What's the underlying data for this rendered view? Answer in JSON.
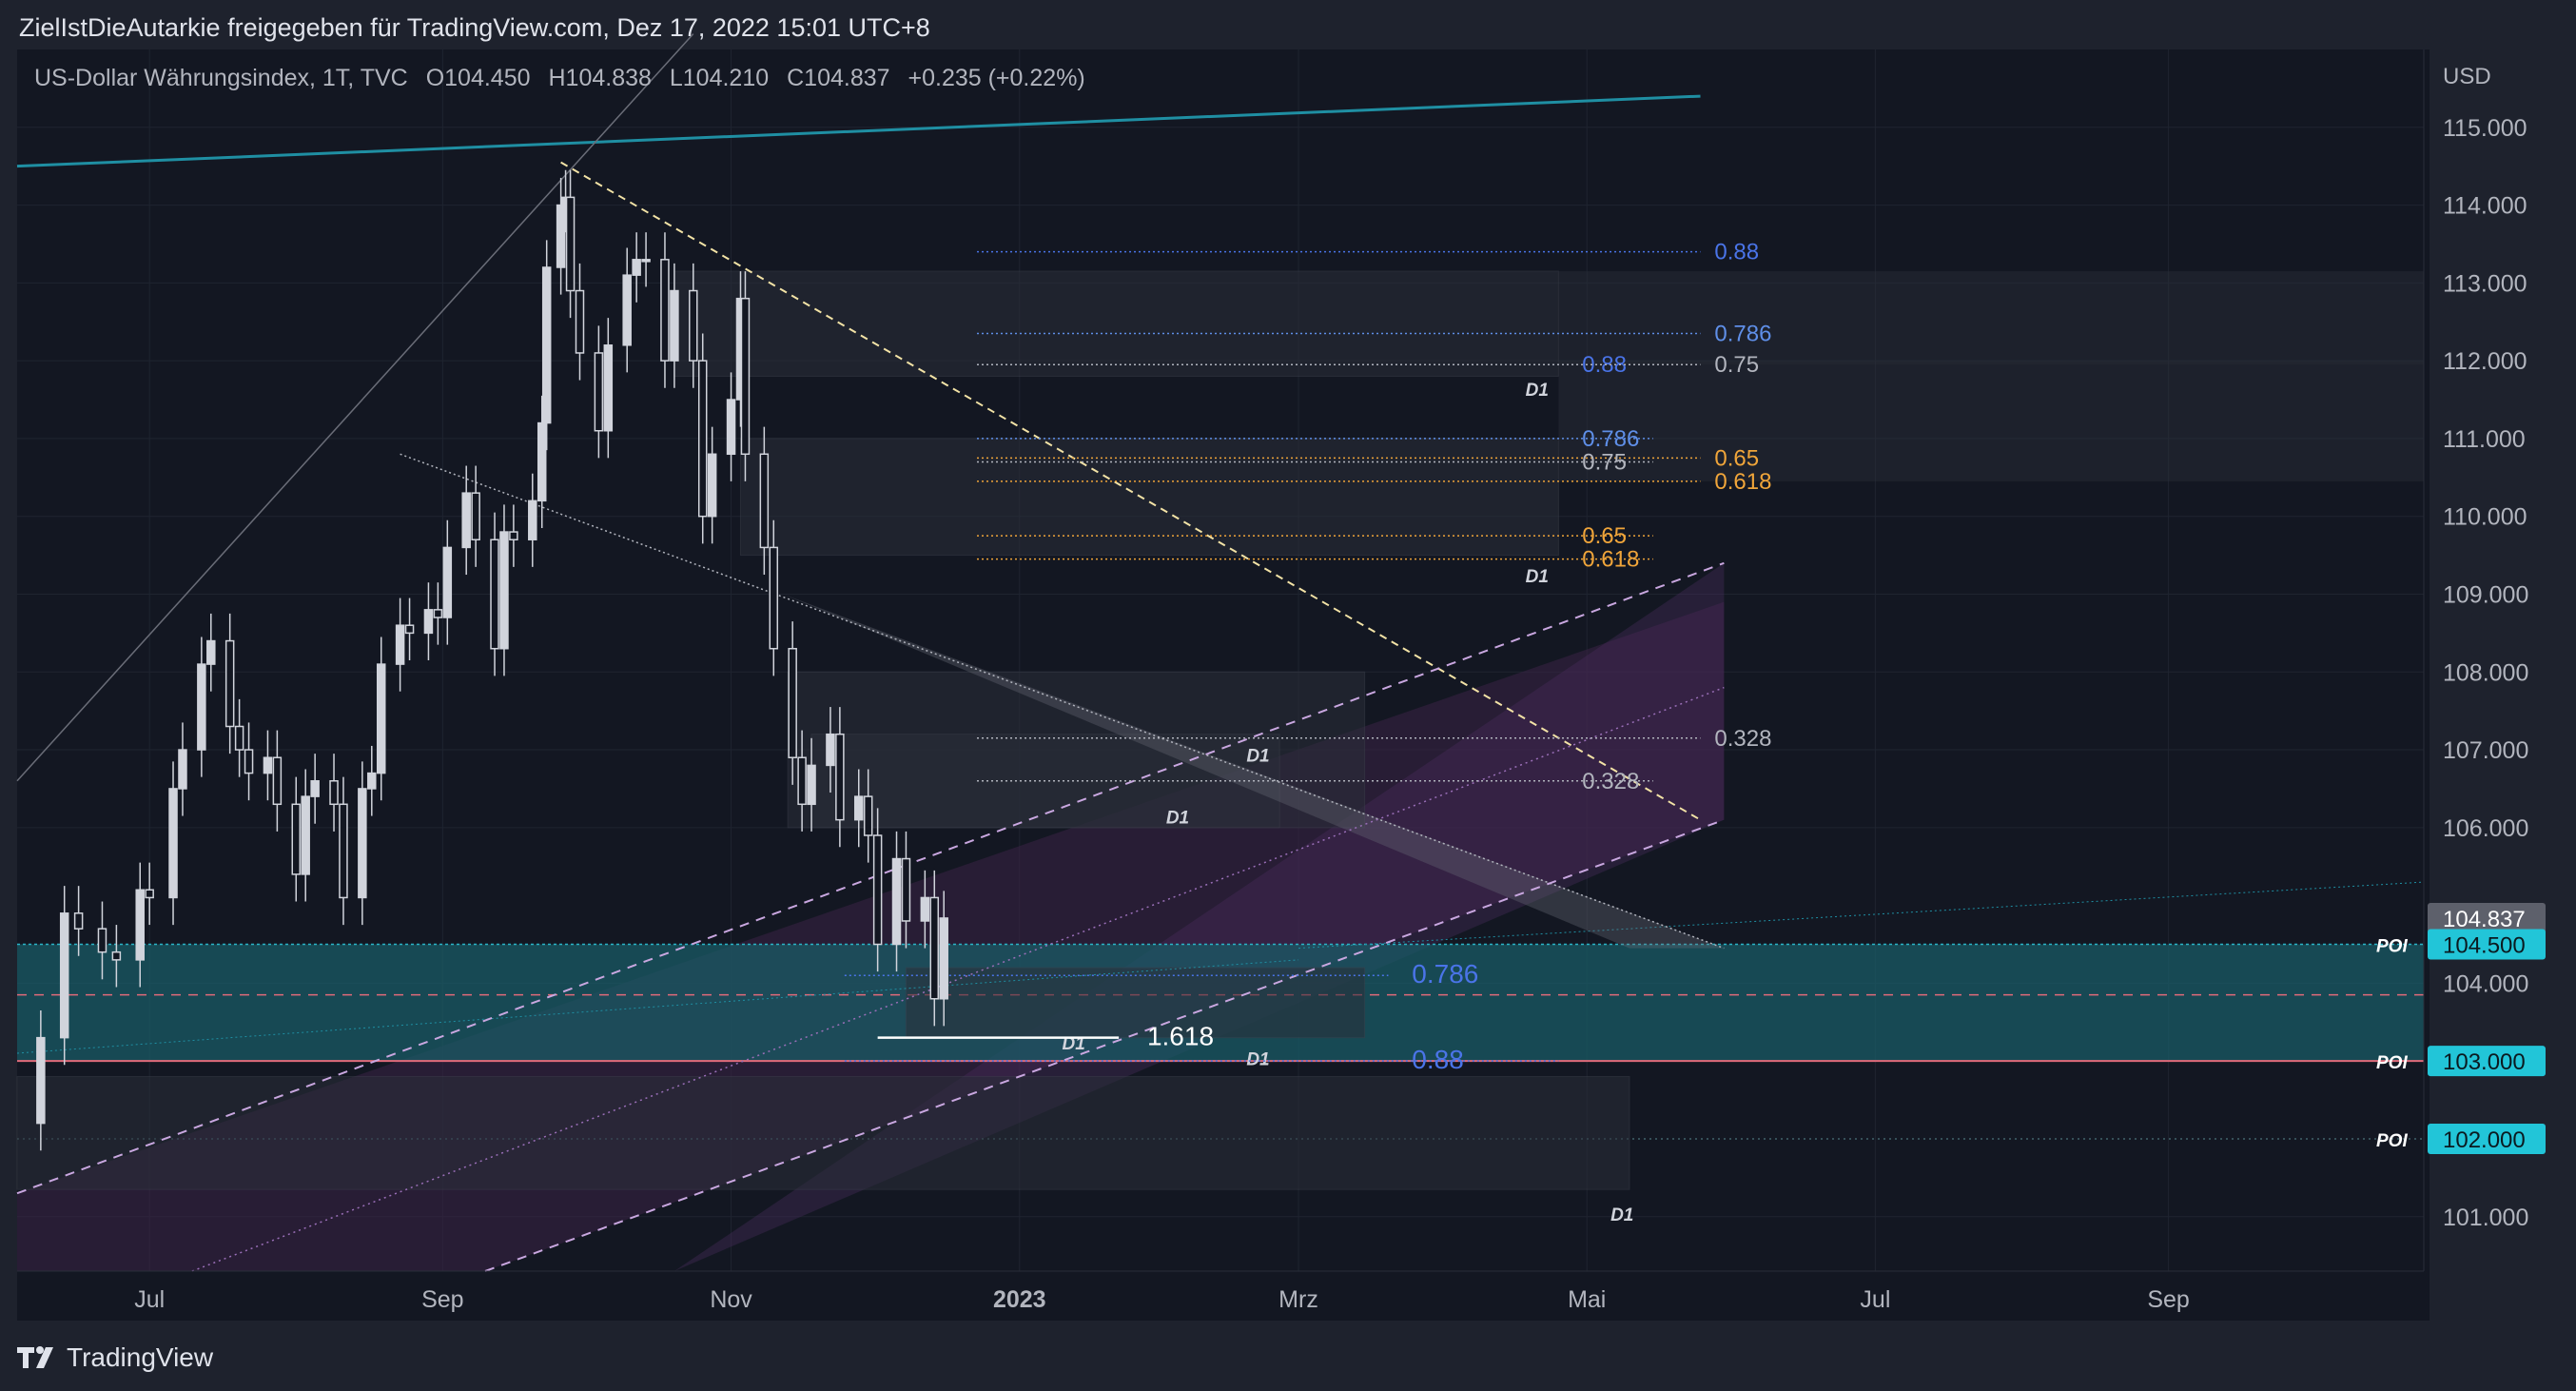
{
  "header": {
    "attribution": "ZielIstDieAutarkie freigegeben für TradingView.com, Dez 17, 2022 15:01 UTC+8"
  },
  "legend": {
    "symbol": "US-Dollar Währungsindex, 1T, TVC",
    "open": "O104.450",
    "high": "H104.838",
    "low": "L104.210",
    "close": "C104.837",
    "change": "+0.235 (+0.22%)"
  },
  "footer": {
    "brand": "TradingView"
  },
  "colors": {
    "background": "#131722",
    "axis_text": "#b2b5be",
    "trend_teal": "#1f8fa3",
    "poi_label_bg": "#22c5d8",
    "price_label_bg": "#5d606b",
    "fib_blue": "#4a74e8",
    "fib_orange": "#f0a53a",
    "fib_grey": "#b2b5be",
    "zone_purple": "#4a2b5c",
    "zone_teal": "#1a5b66",
    "candle": "#d1d4dc"
  },
  "chart_data": {
    "type": "candlestick",
    "title": "US-Dollar Währungsindex",
    "interval": "1T",
    "source": "TVC",
    "currency_label": "USD",
    "ylim": [
      100.3,
      116.0
    ],
    "y_ticks": [
      "115.000",
      "114.000",
      "113.000",
      "112.000",
      "111.000",
      "110.000",
      "109.000",
      "108.000",
      "107.000",
      "106.000",
      "104.000",
      "101.000"
    ],
    "y_tick_values": [
      115,
      114,
      113,
      112,
      111,
      110,
      109,
      108,
      107,
      106,
      104,
      101
    ],
    "x_ticks": [
      "Jul",
      "Sep",
      "Nov",
      "2023",
      "Mrz",
      "Mai",
      "Jul",
      "Sep"
    ],
    "x_tick_dates": [
      "2022-07-01",
      "2022-09-01",
      "2022-11-01",
      "2023-01-01",
      "2023-03-01",
      "2023-05-01",
      "2023-07-01",
      "2023-09-01"
    ],
    "xlim": [
      "2022-06-03",
      "2023-10-25"
    ],
    "ohlc": {
      "open": 104.45,
      "high": 104.838,
      "low": 104.21,
      "close": 104.837,
      "change": 0.235,
      "change_pct": 0.22
    },
    "price_labels": [
      {
        "value": 104.837,
        "label": "104.837"
      },
      {
        "value": 104.5,
        "label": "104.500",
        "tag": "POI"
      },
      {
        "value": 103.0,
        "label": "103.000",
        "tag": "POI"
      },
      {
        "value": 102.0,
        "label": "102.000",
        "tag": "POI"
      }
    ],
    "daily_closes_approx": [
      [
        "2022-06-03",
        102.2
      ],
      [
        "2022-06-08",
        103.3
      ],
      [
        "2022-06-13",
        104.9
      ],
      [
        "2022-06-16",
        104.7
      ],
      [
        "2022-06-21",
        104.4
      ],
      [
        "2022-06-24",
        104.3
      ],
      [
        "2022-06-29",
        105.2
      ],
      [
        "2022-07-01",
        105.1
      ],
      [
        "2022-07-06",
        106.5
      ],
      [
        "2022-07-08",
        107.0
      ],
      [
        "2022-07-12",
        108.1
      ],
      [
        "2022-07-14",
        108.4
      ],
      [
        "2022-07-18",
        107.3
      ],
      [
        "2022-07-20",
        107.0
      ],
      [
        "2022-07-22",
        106.7
      ],
      [
        "2022-07-26",
        106.9
      ],
      [
        "2022-07-28",
        106.3
      ],
      [
        "2022-08-01",
        105.4
      ],
      [
        "2022-08-03",
        106.4
      ],
      [
        "2022-08-05",
        106.6
      ],
      [
        "2022-08-09",
        106.3
      ],
      [
        "2022-08-11",
        105.1
      ],
      [
        "2022-08-15",
        106.5
      ],
      [
        "2022-08-17",
        106.7
      ],
      [
        "2022-08-19",
        108.1
      ],
      [
        "2022-08-23",
        108.6
      ],
      [
        "2022-08-25",
        108.5
      ],
      [
        "2022-08-29",
        108.8
      ],
      [
        "2022-08-31",
        108.7
      ],
      [
        "2022-09-02",
        109.6
      ],
      [
        "2022-09-06",
        110.3
      ],
      [
        "2022-09-08",
        109.7
      ],
      [
        "2022-09-12",
        108.3
      ],
      [
        "2022-09-14",
        109.8
      ],
      [
        "2022-09-16",
        109.7
      ],
      [
        "2022-09-20",
        110.2
      ],
      [
        "2022-09-22",
        111.2
      ],
      [
        "2022-09-23",
        113.2
      ],
      [
        "2022-09-26",
        114.0
      ],
      [
        "2022-09-27",
        114.1
      ],
      [
        "2022-09-28",
        112.9
      ],
      [
        "2022-09-30",
        112.1
      ],
      [
        "2022-10-04",
        111.1
      ],
      [
        "2022-10-06",
        112.2
      ],
      [
        "2022-10-10",
        113.1
      ],
      [
        "2022-10-12",
        113.3
      ],
      [
        "2022-10-14",
        113.3
      ],
      [
        "2022-10-18",
        112.0
      ],
      [
        "2022-10-20",
        112.9
      ],
      [
        "2022-10-24",
        112.0
      ],
      [
        "2022-10-26",
        110.0
      ],
      [
        "2022-10-28",
        110.8
      ],
      [
        "2022-11-01",
        111.5
      ],
      [
        "2022-11-03",
        112.8
      ],
      [
        "2022-11-04",
        110.8
      ],
      [
        "2022-11-08",
        109.6
      ],
      [
        "2022-11-10",
        108.3
      ],
      [
        "2022-11-14",
        106.9
      ],
      [
        "2022-11-16",
        106.3
      ],
      [
        "2022-11-18",
        106.8
      ],
      [
        "2022-11-22",
        107.2
      ],
      [
        "2022-11-24",
        106.1
      ],
      [
        "2022-11-28",
        106.4
      ],
      [
        "2022-11-30",
        105.9
      ],
      [
        "2022-12-02",
        104.5
      ],
      [
        "2022-12-06",
        105.6
      ],
      [
        "2022-12-08",
        104.8
      ],
      [
        "2022-12-12",
        105.1
      ],
      [
        "2022-12-14",
        103.8
      ],
      [
        "2022-12-16",
        104.837
      ]
    ],
    "fib_levels": [
      {
        "label": "0.88",
        "value": 113.4,
        "color": "#4a74e8"
      },
      {
        "label": "0.786",
        "value": 112.35,
        "color": "#5f8fe8"
      },
      {
        "label": "0.88",
        "value": 111.95,
        "color": "#4a74e8"
      },
      {
        "label": "0.75",
        "value": 111.95,
        "color": "#b2b5be"
      },
      {
        "label": "0.786",
        "value": 111.0,
        "color": "#5f8fe8"
      },
      {
        "label": "0.65",
        "value": 110.75,
        "color": "#f0a53a"
      },
      {
        "label": "0.75",
        "value": 110.7,
        "color": "#b2b5be"
      },
      {
        "label": "0.618",
        "value": 110.45,
        "color": "#f0a53a"
      },
      {
        "label": "0.65",
        "value": 109.75,
        "color": "#f0a53a"
      },
      {
        "label": "0.618",
        "value": 109.45,
        "color": "#f0a53a"
      },
      {
        "label": "0.328",
        "value": 107.15,
        "color": "#b2b5be"
      },
      {
        "label": "0.328",
        "value": 106.6,
        "color": "#b2b5be"
      },
      {
        "label": "0.786",
        "value": 104.1,
        "color": "#4a74e8"
      },
      {
        "label": "1.618",
        "value": 103.3,
        "color": "#ffffff"
      },
      {
        "label": "0.88",
        "value": 103.0,
        "color": "#4a74e8"
      }
    ],
    "zone_labels": [
      "D1",
      "D1",
      "D1",
      "D1",
      "D1",
      "D1",
      "D1"
    ],
    "poi_tag": "POI"
  }
}
